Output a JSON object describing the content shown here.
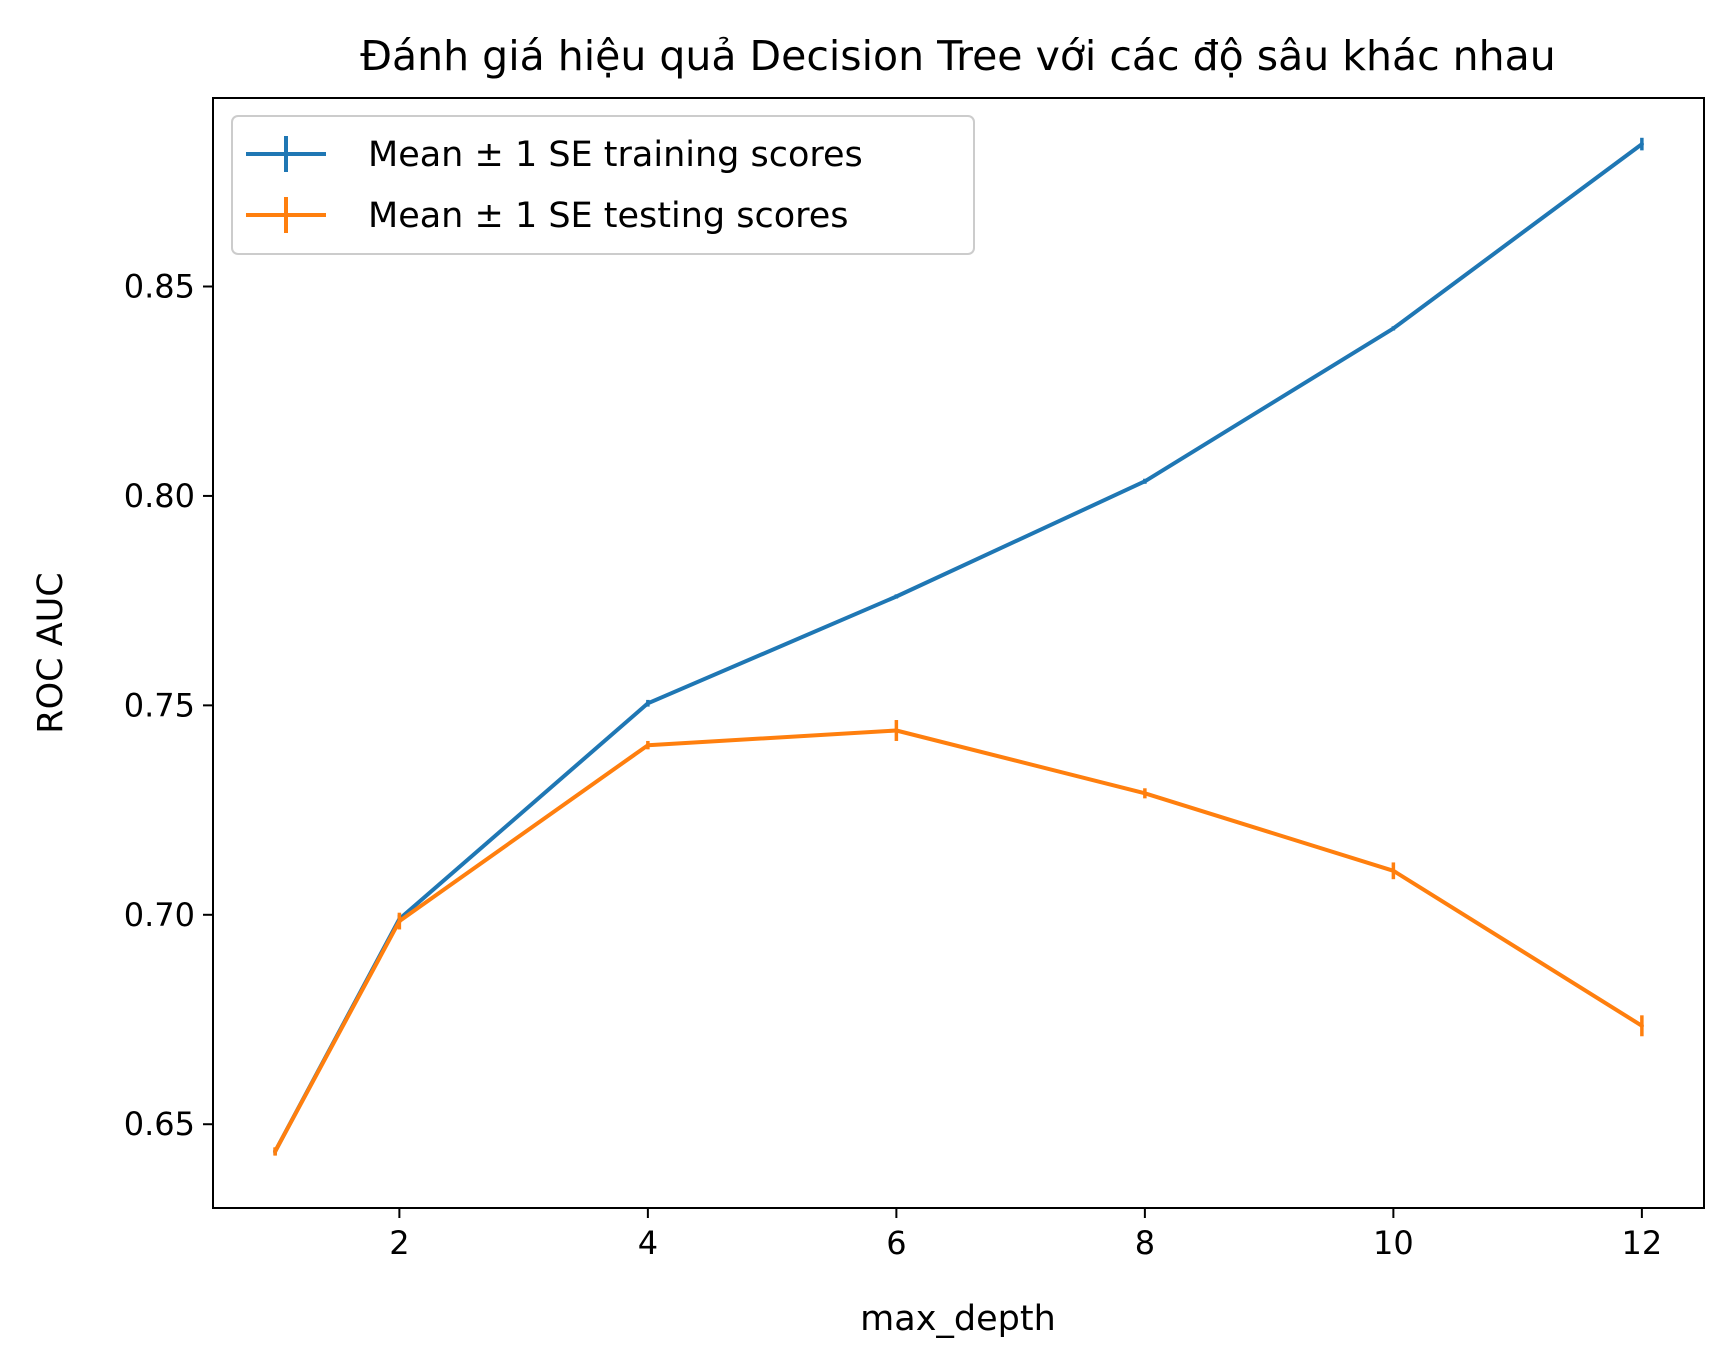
{
  "chart_data": {
    "type": "line",
    "title": "Đánh giá hiệu quả Decision Tree với các độ sâu khác nhau",
    "xlabel": "max_depth",
    "ylabel": "ROC AUC",
    "xlim": [
      0.5,
      12.5
    ],
    "ylim": [
      0.63,
      0.895
    ],
    "xticks": [
      2,
      4,
      6,
      8,
      10,
      12
    ],
    "xtick_labels": [
      "2",
      "4",
      "6",
      "8",
      "10",
      "12"
    ],
    "yticks": [
      0.65,
      0.7,
      0.75,
      0.8,
      0.85
    ],
    "ytick_labels": [
      "0.65",
      "0.70",
      "0.75",
      "0.80",
      "0.85"
    ],
    "grid": false,
    "legend_position": "top-left",
    "x": [
      1,
      2,
      4,
      6,
      8,
      10,
      12
    ],
    "series": [
      {
        "name": "Mean ± 1 SE training scores",
        "color": "#1f77b4",
        "values": [
          0.6435,
          0.699,
          0.7505,
          0.776,
          0.8035,
          0.84,
          0.884
        ],
        "errors": [
          0.0008,
          0.001,
          0.0008,
          0.0005,
          0.0006,
          0.0005,
          0.0015
        ]
      },
      {
        "name": "Mean ± 1 SE testing scores",
        "color": "#ff7f0e",
        "values": [
          0.6435,
          0.6985,
          0.7405,
          0.744,
          0.729,
          0.7105,
          0.6735
        ],
        "errors": [
          0.001,
          0.002,
          0.001,
          0.0025,
          0.0012,
          0.002,
          0.0025
        ]
      }
    ]
  }
}
